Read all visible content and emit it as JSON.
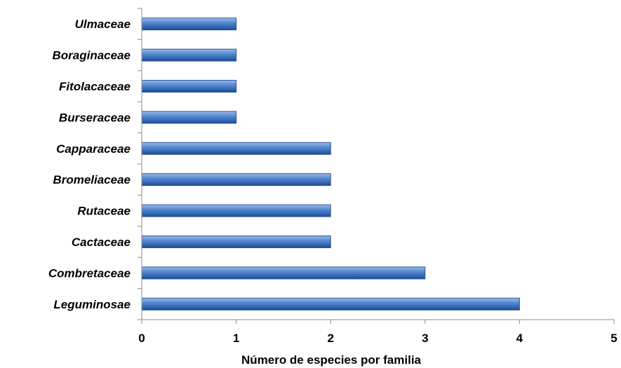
{
  "chart_data": {
    "type": "bar",
    "orientation": "horizontal",
    "categories": [
      "Ulmaceae",
      "Boraginaceae",
      "Fitolacaceae",
      "Burseraceae",
      "Capparaceae",
      "Bromeliaceae",
      "Rutaceae",
      "Cactaceae",
      "Combretaceae",
      "Leguminosae"
    ],
    "values": [
      1,
      1,
      1,
      1,
      2,
      2,
      2,
      2,
      3,
      4
    ],
    "xlabel": "Número de especies por familia",
    "xlim": [
      0,
      5
    ],
    "xticks": [
      "0",
      "1",
      "2",
      "3",
      "4",
      "5"
    ],
    "grid": false,
    "bar_color": "#4f81bd"
  }
}
